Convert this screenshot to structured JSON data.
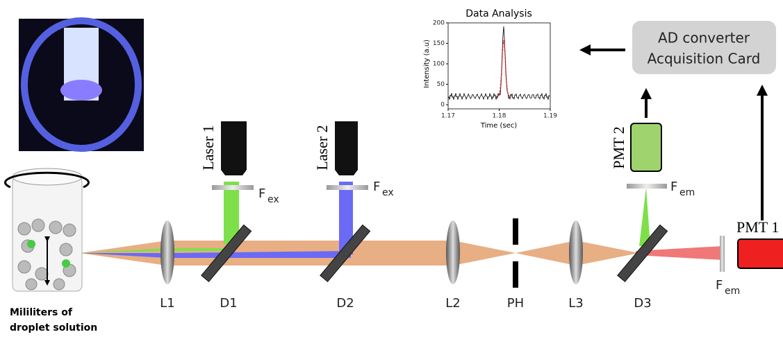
{
  "photo": {},
  "sample": {
    "label_line1": "Mililiters of",
    "label_line2": "droplet solution"
  },
  "lasers": [
    {
      "label": "Laser 1"
    },
    {
      "label": "Laser 2"
    }
  ],
  "excitation_filter": {
    "main": "F",
    "sub": "ex"
  },
  "emission_filter": {
    "main": "F",
    "sub": "em"
  },
  "components": {
    "L1": "L1",
    "D1": "D1",
    "D2": "D2",
    "L2": "L2",
    "PH": "PH",
    "L3": "L3",
    "D3": "D3"
  },
  "detectors": [
    {
      "label": "PMT 1"
    },
    {
      "label": "PMT 2"
    }
  ],
  "converter": {
    "line1": "AD converter",
    "line2": "Acquisition Card"
  },
  "inset_chart": {
    "title": "Data Analysis",
    "x_label": "Time (sec)",
    "y_label": "Intensity (a.u)",
    "xlim": [
      1.17,
      1.19
    ],
    "xticks": [
      1.17,
      1.18,
      1.19
    ],
    "ylim": [
      -10,
      200
    ],
    "yticks": [
      0,
      50,
      100,
      150,
      200
    ]
  }
}
